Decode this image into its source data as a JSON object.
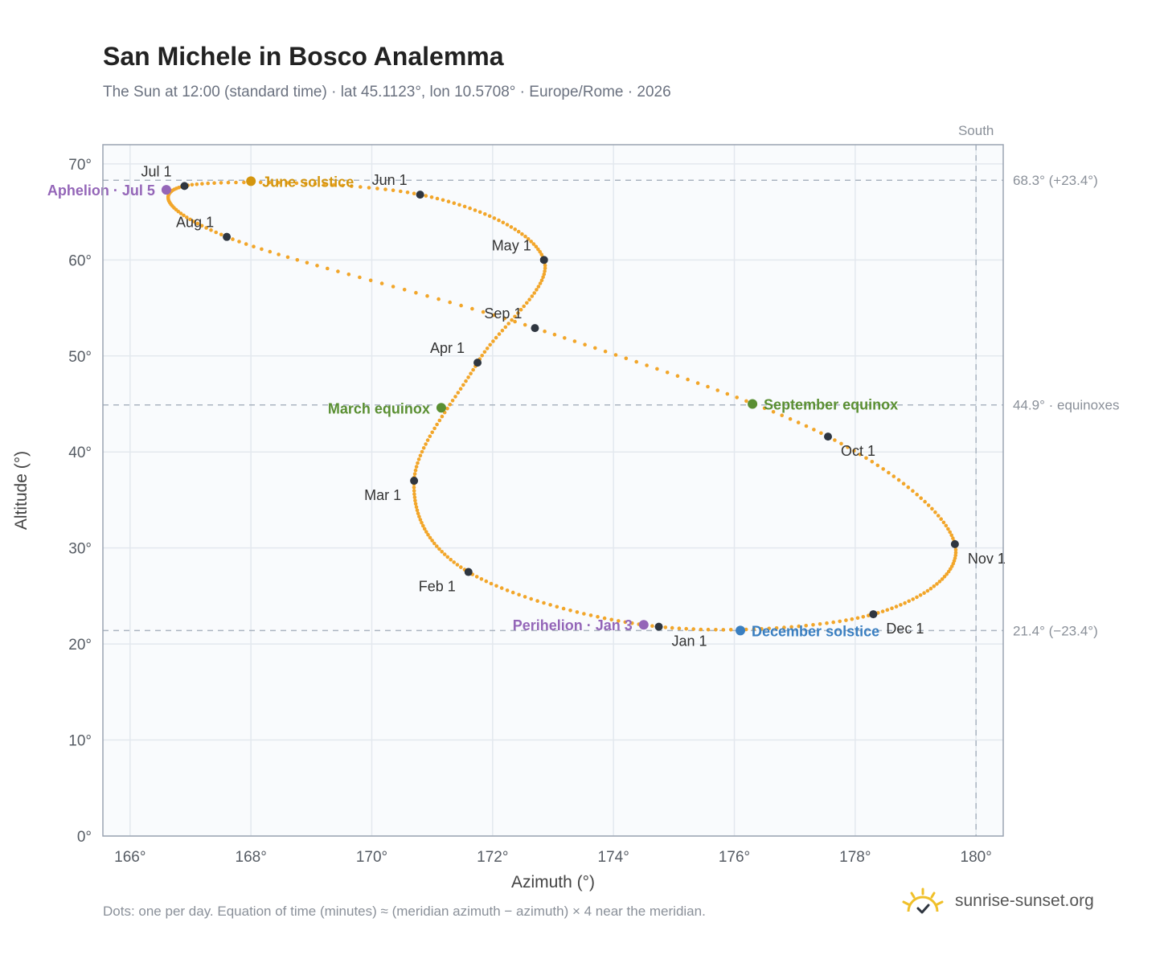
{
  "header": {
    "title": "San Michele in Bosco Analemma",
    "subtitle": "The Sun at 12:00 (standard time) · lat 45.1123°, lon 10.5708° · Europe/Rome · 2026"
  },
  "footer": {
    "note": "Dots: one per day. Equation of time (minutes) ≈ (meridian azimuth − azimuth) × 4 near the meridian.",
    "brand": "sunrise-sunset.org"
  },
  "colors": {
    "path": "#f2a62a",
    "month_marker": "#2f3640",
    "solstice_june": "#d4960f",
    "solstice_december": "#3a7fc1",
    "equinox": "#5a8f32",
    "apsis": "#9466b8",
    "grid": "#e3e8ee",
    "plot_bg": "#f9fbfd",
    "axis_text": "#555b63",
    "ref_line": "#aab4c0"
  },
  "chart_data": {
    "type": "scatter",
    "xlabel": "Azimuth (°)",
    "ylabel": "Altitude (°)",
    "xlim": [
      165.55,
      180.45
    ],
    "ylim": [
      0,
      72
    ],
    "x_ticks": [
      166,
      168,
      170,
      172,
      174,
      176,
      178,
      180
    ],
    "x_tick_labels": [
      "166°",
      "168°",
      "170°",
      "172°",
      "174°",
      "176°",
      "178°",
      "180°"
    ],
    "y_ticks": [
      0,
      10,
      20,
      30,
      40,
      50,
      60,
      70
    ],
    "y_tick_labels": [
      "0°",
      "10°",
      "20°",
      "30°",
      "40°",
      "50°",
      "60°",
      "70°"
    ],
    "grid": true,
    "south_line": {
      "x": 180,
      "label": "South"
    },
    "reference_lines": [
      {
        "y": 68.3,
        "label": "68.3° (+23.4°)"
      },
      {
        "y": 44.9,
        "label": "44.9° · equinoxes"
      },
      {
        "y": 21.4,
        "label": "21.4° (−23.4°)"
      }
    ],
    "month_markers": [
      {
        "label": "Jan 1",
        "azimuth": 174.75,
        "altitude": 21.8
      },
      {
        "label": "Feb 1",
        "azimuth": 171.6,
        "altitude": 27.5
      },
      {
        "label": "Mar 1",
        "azimuth": 170.7,
        "altitude": 37.0
      },
      {
        "label": "Apr 1",
        "azimuth": 171.75,
        "altitude": 49.3
      },
      {
        "label": "May 1",
        "azimuth": 172.85,
        "altitude": 60.0
      },
      {
        "label": "Jun 1",
        "azimuth": 170.8,
        "altitude": 66.8
      },
      {
        "label": "Jul 1",
        "azimuth": 166.9,
        "altitude": 67.7
      },
      {
        "label": "Aug 1",
        "azimuth": 167.6,
        "altitude": 62.4
      },
      {
        "label": "Sep 1",
        "azimuth": 172.7,
        "altitude": 52.9
      },
      {
        "label": "Oct 1",
        "azimuth": 177.55,
        "altitude": 41.6
      },
      {
        "label": "Nov 1",
        "azimuth": 179.65,
        "altitude": 30.4
      },
      {
        "label": "Dec 1",
        "azimuth": 178.3,
        "altitude": 23.1
      }
    ],
    "events": [
      {
        "label": "June solstice",
        "azimuth": 168.0,
        "altitude": 68.2,
        "kind": "solstice_june"
      },
      {
        "label": "December solstice",
        "azimuth": 176.1,
        "altitude": 21.4,
        "kind": "solstice_december"
      },
      {
        "label": "March equinox",
        "azimuth": 171.15,
        "altitude": 44.6,
        "kind": "equinox"
      },
      {
        "label": "September equinox",
        "azimuth": 176.3,
        "altitude": 45.0,
        "kind": "equinox"
      },
      {
        "label": "Aphelion · Jul 5",
        "azimuth": 166.6,
        "altitude": 67.3,
        "kind": "apsis"
      },
      {
        "label": "Perihelion · Jan 3",
        "azimuth": 174.5,
        "altitude": 22.0,
        "kind": "apsis"
      }
    ]
  }
}
